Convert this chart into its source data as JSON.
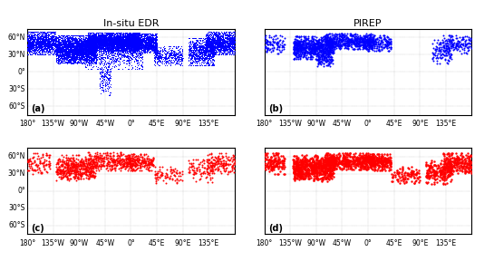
{
  "title_left": "In-situ EDR",
  "title_right": "PIREP",
  "panel_labels": [
    "(a)",
    "(b)",
    "(c)",
    "(d)"
  ],
  "blue_color": "#0000FF",
  "red_color": "#FF0000",
  "lon_ticks": [
    -180,
    -135,
    -90,
    -45,
    0,
    45,
    90,
    135
  ],
  "lon_labels": [
    "180°",
    "135°W",
    "90°W",
    "45°W",
    "0°",
    "45°E",
    "90°E",
    "135°E"
  ],
  "lat_ticks": [
    -60,
    -30,
    0,
    30,
    60
  ],
  "lat_labels_left": [
    "60°S",
    "30°S",
    "0°",
    "30°N",
    "60°N"
  ],
  "lat_labels_right": [
    "60°S",
    "30°S",
    "0°",
    "30°N",
    "60°N"
  ],
  "lat_min": -75,
  "lat_max": 75,
  "lon_min": -180,
  "lon_max": 180,
  "background_color": "#ffffff",
  "coastline_color": "#000000",
  "coastline_lw": 0.4,
  "grid_color": "#999999",
  "grid_lw": 0.3,
  "title_fontsize": 8,
  "axis_label_fontsize": 5.5,
  "panel_label_fontsize": 7,
  "nil_edr_size": 0.8,
  "mog_edr_size": 2.5,
  "nil_pirep_size": 2.5,
  "mog_pirep_size": 3.5
}
